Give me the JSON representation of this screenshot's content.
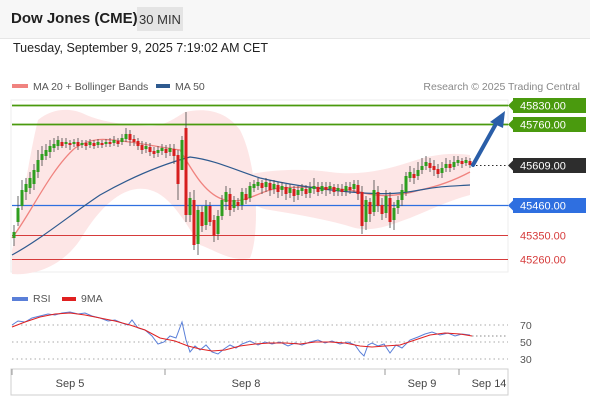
{
  "header": {
    "title": "Dow Jones (CME)",
    "interval": "30 MIN",
    "datetime": "Tuesday, September 9, 2025 7:19:02 AM CET"
  },
  "legend": {
    "ma20_label": "MA 20 + Bollinger Bands",
    "ma50_label": "MA 50",
    "credit": "Research © 2025 Trading Central",
    "ma20_color": "#f0837f",
    "ma50_color": "#2e5a8f"
  },
  "levels": [
    {
      "value": 45830,
      "label": "45830.00",
      "color": "#4a9a0e",
      "style": "solid-green",
      "box": true
    },
    {
      "value": 45760,
      "label": "45760.00",
      "color": "#4a9a0e",
      "style": "solid-green",
      "box": true
    },
    {
      "value": 45609,
      "label": "45609.00",
      "color": "#2d2d2d",
      "style": "dotted",
      "box": true
    },
    {
      "value": 45460,
      "label": "45460.00",
      "color": "#2f6fe0",
      "style": "solid-blue",
      "box": true
    },
    {
      "value": 45350,
      "label": "45350.00",
      "color": "#d63b3b",
      "style": "solid-red",
      "box": false
    },
    {
      "value": 45260,
      "label": "45260.00",
      "color": "#d63b3b",
      "style": "solid-red",
      "box": false
    }
  ],
  "indicator": {
    "rsi_label": "RSI",
    "ma9_label": "9MA",
    "rsi_color": "#5a7fd8",
    "ma9_color": "#e02020",
    "levels": [
      "70",
      "50",
      "30"
    ]
  },
  "xaxis": {
    "labels": [
      "Sep 5",
      "Sep 8",
      "Sep 9",
      "Sep 14"
    ]
  },
  "chart_data": {
    "type": "candlestick",
    "title": "Dow Jones (CME)",
    "interval": "30 MIN",
    "ylim": [
      45250,
      45840
    ],
    "current_price": 45609,
    "resistance": [
      45760,
      45830
    ],
    "pivot": 45460,
    "support": [
      45350,
      45260
    ],
    "rsi_levels": [
      30,
      50,
      70
    ]
  }
}
